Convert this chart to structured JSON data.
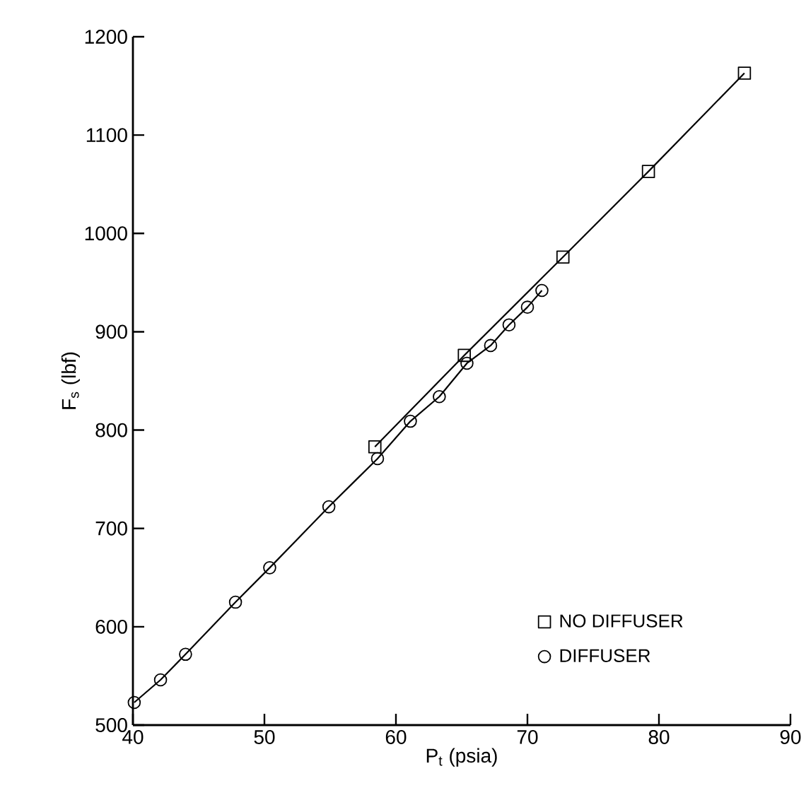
{
  "chart_data": {
    "type": "line",
    "xlabel": "P$_{t}$   (psia)",
    "ylabel": "F$_{s}$  (lbf)",
    "xlim": [
      40,
      90
    ],
    "xticks": [
      40,
      50,
      60,
      70,
      80,
      90
    ],
    "ylim": [
      500,
      1200
    ],
    "yticks": [
      500,
      600,
      700,
      800,
      900,
      1000,
      1100,
      1200
    ],
    "legend": "bottom right",
    "grid": false,
    "line_style": "solid",
    "series": [
      {
        "name": "NO DIFFUSER",
        "color": "#000000",
        "marker": "square",
        "x": [
          58.4,
          65.2,
          72.7,
          79.2,
          86.5
        ],
        "values": [
          783,
          876,
          976,
          1063,
          1163
        ]
      },
      {
        "name": "DIFFUSER",
        "color": "#000000",
        "marker": "circle",
        "x": [
          40.1,
          42.1,
          44.0,
          47.8,
          50.4,
          54.9,
          58.6,
          61.1,
          63.3,
          65.4,
          67.2,
          68.6,
          70.0,
          71.1
        ],
        "values": [
          523,
          546,
          572,
          625,
          660,
          722,
          771,
          809,
          834,
          868,
          886,
          907,
          925,
          942
        ]
      }
    ]
  }
}
